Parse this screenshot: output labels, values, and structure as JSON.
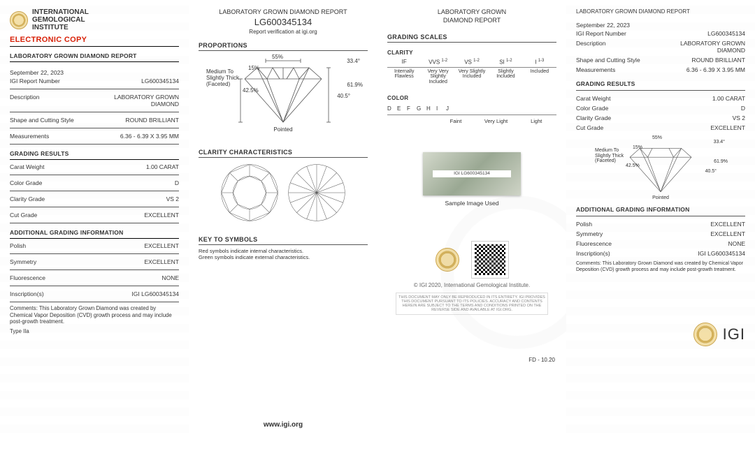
{
  "org": {
    "line1": "INTERNATIONAL",
    "line2": "GEMOLOGICAL",
    "line3": "INSTITUTE",
    "short": "IGI"
  },
  "electronic_copy": "ELECTRONIC COPY",
  "report_title": "LABORATORY GROWN DIAMOND REPORT",
  "report_title_2line_a": "LABORATORY GROWN",
  "report_title_2line_b": "DIAMOND REPORT",
  "date": "September 22, 2023",
  "fields": {
    "report_number_label": "IGI Report Number",
    "report_number": "LG600345134",
    "description_label": "Description",
    "description": "LABORATORY GROWN DIAMOND",
    "shape_label": "Shape and Cutting Style",
    "shape": "ROUND BRILLIANT",
    "measurements_label": "Measurements",
    "measurements": "6.36 - 6.39 X 3.95 MM"
  },
  "grading_results_title": "GRADING RESULTS",
  "grading": {
    "carat_label": "Carat Weight",
    "carat": "1.00 CARAT",
    "color_label": "Color Grade",
    "color": "D",
    "clarity_label": "Clarity Grade",
    "clarity": "VS 2",
    "cut_label": "Cut Grade",
    "cut": "EXCELLENT"
  },
  "additional_title": "ADDITIONAL GRADING INFORMATION",
  "additional": {
    "polish_label": "Polish",
    "polish": "EXCELLENT",
    "symmetry_label": "Symmetry",
    "symmetry": "EXCELLENT",
    "fluorescence_label": "Fluorescence",
    "fluorescence": "NONE",
    "inscription_label": "Inscription(s)",
    "inscription": "IGI LG600345134"
  },
  "comments_label": "Comments:",
  "comments_text": "This Laboratory Grown Diamond was created by Chemical Vapor Deposition (CVD) growth process and may include post-growth treatment.",
  "type": "Type IIa",
  "panel2": {
    "header": "LABORATORY GROWN DIAMOND REPORT",
    "number": "LG600345134",
    "verify": "Report verification at igi.org",
    "proportions": "PROPORTIONS",
    "clarity_char": "CLARITY CHARACTERISTICS",
    "key": "KEY TO SYMBOLS",
    "key_red": "Red symbols indicate internal characteristics.",
    "key_green": "Green symbols indicate external characteristics.",
    "www": "www.igi.org"
  },
  "proportions": {
    "table_pct": "55%",
    "crown_angle": "33.4°",
    "pavilion_angle": "40.5°",
    "depth_pct": "61.9%",
    "crown_pct": "15%",
    "pavilion_pct": "42.5%",
    "girdle": "Medium To Slightly Thick (Faceted)",
    "culet": "Pointed"
  },
  "panel3": {
    "grading_scales": "GRADING SCALES",
    "clarity": "CLARITY",
    "color": "COLOR",
    "sample_caption": "Sample Image Used",
    "sample_inscription": "IGI LG600345134",
    "copyright": "© IGI 2020, International Gemological Institute.",
    "disclaimer": "THIS DOCUMENT MAY ONLY BE REPRODUCED IN ITS ENTIRETY. IGI PROVIDES THIS DOCUMENT PURSUANT TO ITS POLICIES. ACCURACY AND CONTENTS HEREIN ARE SUBJECT TO THE TERMS AND CONDITIONS PRINTED ON THE REVERSE SIDE AND AVAILABLE AT IGI.ORG.",
    "fd": "FD - 10.20"
  },
  "clarity_scale": {
    "heads": [
      "IF",
      "VVS",
      "VS",
      "SI",
      "I"
    ],
    "sup": [
      "",
      "1-2",
      "1-2",
      "1-2",
      "1-3"
    ],
    "subs": [
      "Internally Flawless",
      "Very Very Slightly Included",
      "Very Slightly Included",
      "Slightly Included",
      "Included"
    ]
  },
  "color_scale": {
    "letters": [
      "D",
      "E",
      "F",
      "G",
      "H",
      "I",
      "J"
    ],
    "groups": [
      "Faint",
      "Very Light",
      "Light"
    ]
  },
  "colors": {
    "red": "#d81e05",
    "gold": "#caa34a",
    "text": "#333333",
    "line": "#555555"
  }
}
